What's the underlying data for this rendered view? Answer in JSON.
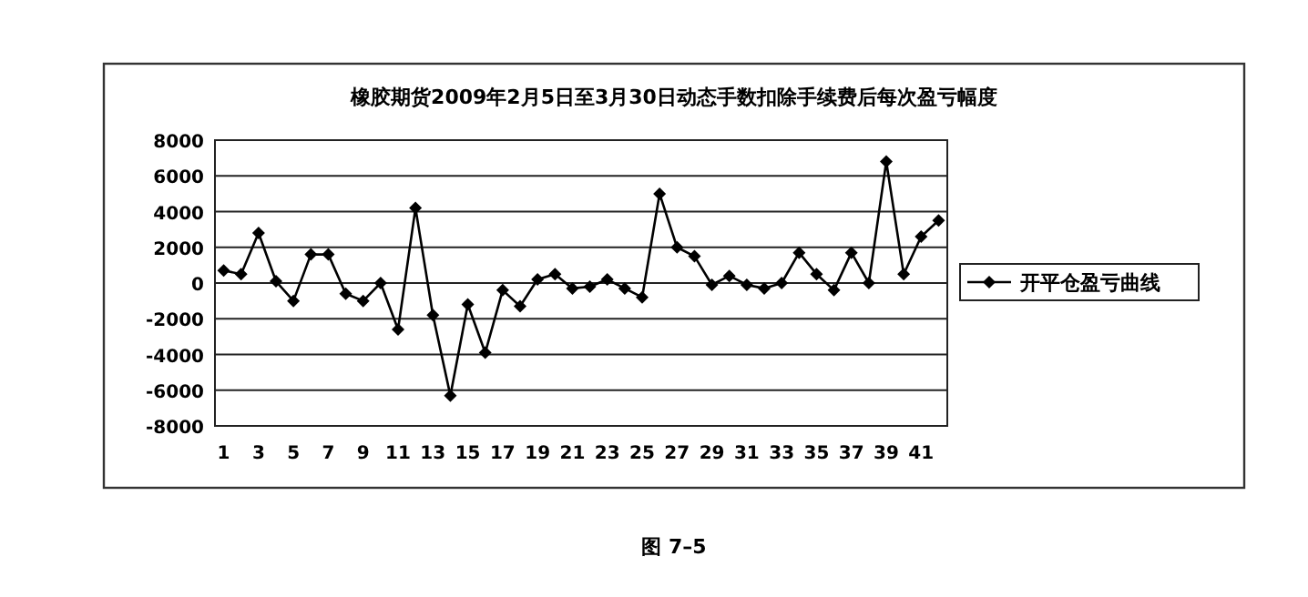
{
  "chart_data": {
    "type": "line",
    "title": "橡胶期货2009年2月5日至3月30日动态手数扣除手续费后每次盈亏幅度",
    "x": [
      1,
      2,
      3,
      4,
      5,
      6,
      7,
      8,
      9,
      10,
      11,
      12,
      13,
      14,
      15,
      16,
      17,
      18,
      19,
      20,
      21,
      22,
      23,
      24,
      25,
      26,
      27,
      28,
      29,
      30,
      31,
      32,
      33,
      34,
      35,
      36,
      37,
      38,
      39,
      40,
      41,
      42
    ],
    "xlim": [
      0.5,
      42.5
    ],
    "xticks": [
      1,
      3,
      5,
      7,
      9,
      11,
      13,
      15,
      17,
      19,
      21,
      23,
      25,
      27,
      29,
      31,
      33,
      35,
      37,
      39,
      41
    ],
    "series": [
      {
        "name": "开平仓盈亏曲线",
        "color": "#000000",
        "values": [
          700,
          500,
          2800,
          100,
          -1000,
          1600,
          1600,
          -600,
          -1000,
          0,
          -2600,
          4200,
          -1800,
          -6300,
          -1200,
          -3900,
          -400,
          -1300,
          200,
          500,
          -300,
          -200,
          200,
          -300,
          -800,
          5000,
          2000,
          1500,
          -100,
          400,
          -100,
          -300,
          0,
          1700,
          500,
          -400,
          1700,
          0,
          6800,
          500,
          2600,
          3500
        ]
      }
    ],
    "ylim": [
      -8000,
      8000
    ],
    "yticks": [
      -8000,
      -6000,
      -4000,
      -2000,
      0,
      2000,
      4000,
      6000,
      8000
    ],
    "grid": "y",
    "legend": "right",
    "marker": "diamond",
    "line_style": "solid",
    "annotations": [
      "图 7–5"
    ]
  }
}
